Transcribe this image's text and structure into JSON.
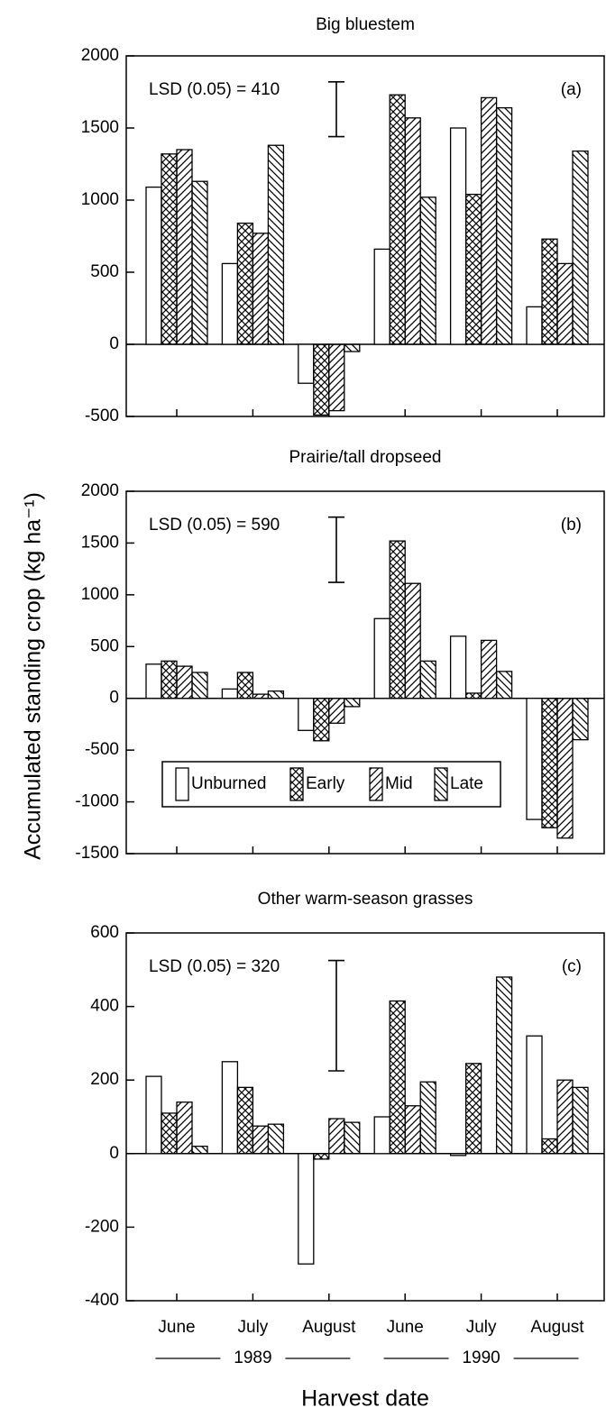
{
  "figure": {
    "ylabel": "Accumulated standing crop (kg ha⁻¹)",
    "xlabel": "Harvest date",
    "year_labels": [
      "1989",
      "1990"
    ]
  },
  "chart_data": [
    {
      "type": "bar",
      "title": "Big bluestem",
      "annotation": "LSD (0.05) = 410",
      "panel_label": "(a)",
      "lsd_bar": [
        1440,
        1820
      ],
      "categories": [
        "June",
        "July",
        "August",
        "June",
        "July",
        "August"
      ],
      "series": [
        {
          "name": "Unburned",
          "color": "#000000",
          "hatch": "none",
          "values": [
            1090,
            560,
            -270,
            660,
            1500,
            260
          ]
        },
        {
          "name": "Early",
          "color": "#000000",
          "hatch": "cross",
          "values": [
            1320,
            840,
            -490,
            1730,
            1040,
            730
          ]
        },
        {
          "name": "Mid",
          "color": "#000000",
          "hatch": "forward",
          "values": [
            1350,
            770,
            -460,
            1570,
            1710,
            560
          ]
        },
        {
          "name": "Late",
          "color": "#000000",
          "hatch": "back",
          "values": [
            1130,
            1380,
            -50,
            1020,
            1640,
            1340
          ]
        }
      ],
      "ylim": [
        -500,
        2000
      ],
      "yticks": [
        -500,
        0,
        500,
        1000,
        1500,
        2000
      ],
      "legend": false
    },
    {
      "type": "bar",
      "title": "Prairie/tall dropseed",
      "annotation": "LSD (0.05) = 590",
      "panel_label": "(b)",
      "lsd_bar": [
        1120,
        1750
      ],
      "categories": [
        "June",
        "July",
        "August",
        "June",
        "July",
        "August"
      ],
      "series": [
        {
          "name": "Unburned",
          "color": "#000000",
          "hatch": "none",
          "values": [
            330,
            90,
            -310,
            770,
            600,
            -1170
          ]
        },
        {
          "name": "Early",
          "color": "#000000",
          "hatch": "cross",
          "values": [
            360,
            250,
            -410,
            1520,
            50,
            -1250
          ]
        },
        {
          "name": "Mid",
          "color": "#000000",
          "hatch": "forward",
          "values": [
            310,
            40,
            -240,
            1110,
            560,
            -1350
          ]
        },
        {
          "name": "Late",
          "color": "#000000",
          "hatch": "back",
          "values": [
            250,
            70,
            -80,
            360,
            260,
            -400
          ]
        }
      ],
      "ylim": [
        -1500,
        2000
      ],
      "yticks": [
        -1500,
        -1000,
        -500,
        0,
        500,
        1000,
        1500,
        2000
      ],
      "legend": true
    },
    {
      "type": "bar",
      "title": "Other warm-season grasses",
      "annotation": "LSD (0.05) = 320",
      "panel_label": "(c)",
      "lsd_bar": [
        225,
        525
      ],
      "categories": [
        "June",
        "July",
        "August",
        "June",
        "July",
        "August"
      ],
      "series": [
        {
          "name": "Unburned",
          "color": "#000000",
          "hatch": "none",
          "values": [
            210,
            250,
            -300,
            100,
            -5,
            320
          ]
        },
        {
          "name": "Early",
          "color": "#000000",
          "hatch": "cross",
          "values": [
            110,
            180,
            -15,
            415,
            245,
            40
          ]
        },
        {
          "name": "Mid",
          "color": "#000000",
          "hatch": "forward",
          "values": [
            140,
            75,
            95,
            130,
            0,
            200
          ]
        },
        {
          "name": "Late",
          "color": "#000000",
          "hatch": "back",
          "values": [
            20,
            80,
            85,
            195,
            480,
            180
          ]
        }
      ],
      "ylim": [
        -400,
        600
      ],
      "yticks": [
        -400,
        -200,
        0,
        200,
        400,
        600
      ],
      "legend": false
    }
  ]
}
